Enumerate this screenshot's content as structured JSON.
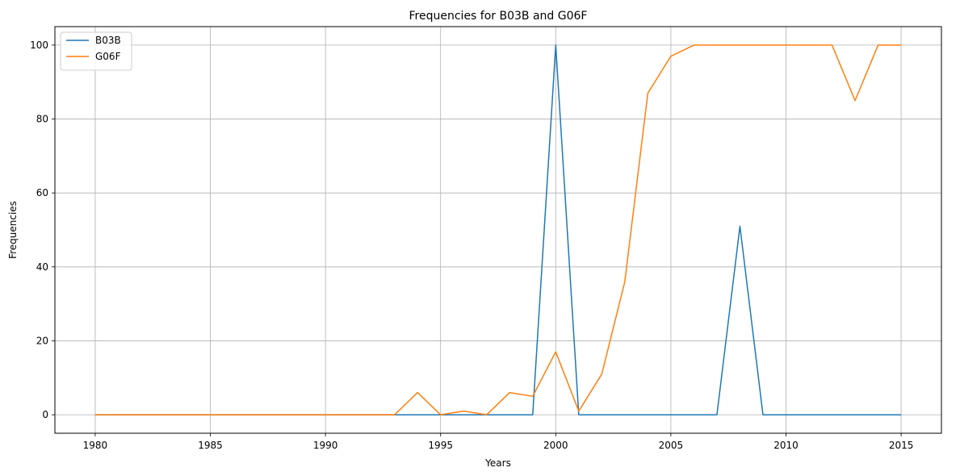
{
  "chart_data": {
    "type": "line",
    "title": "Frequencies for B03B and G06F",
    "xlabel": "Years",
    "ylabel": "Frequencies",
    "x": [
      1980,
      1981,
      1982,
      1983,
      1984,
      1985,
      1986,
      1987,
      1988,
      1989,
      1990,
      1991,
      1992,
      1993,
      1994,
      1995,
      1996,
      1997,
      1998,
      1999,
      2000,
      2001,
      2002,
      2003,
      2004,
      2005,
      2006,
      2007,
      2008,
      2009,
      2010,
      2011,
      2012,
      2013,
      2014,
      2015
    ],
    "xlim": [
      1978.25,
      2016.75
    ],
    "ylim": [
      -5,
      105
    ],
    "xticks": [
      1980,
      1985,
      1990,
      1995,
      2000,
      2005,
      2010,
      2015
    ],
    "yticks": [
      0,
      20,
      40,
      60,
      80,
      100
    ],
    "grid": true,
    "legend_position": "top-left",
    "series": [
      {
        "name": "B03B",
        "color": "#1f77b4",
        "values": [
          0,
          0,
          0,
          0,
          0,
          0,
          0,
          0,
          0,
          0,
          0,
          0,
          0,
          0,
          0,
          0,
          0,
          0,
          0,
          0,
          100,
          0,
          0,
          0,
          0,
          0,
          0,
          0,
          51,
          0,
          0,
          0,
          0,
          0,
          0,
          0
        ]
      },
      {
        "name": "G06F",
        "color": "#ff7f0e",
        "values": [
          0,
          0,
          0,
          0,
          0,
          0,
          0,
          0,
          0,
          0,
          0,
          0,
          0,
          0,
          6,
          0,
          1,
          0,
          6,
          5,
          17,
          1,
          11,
          36,
          87,
          97,
          100,
          100,
          100,
          100,
          100,
          100,
          100,
          85,
          100,
          100
        ]
      }
    ]
  }
}
